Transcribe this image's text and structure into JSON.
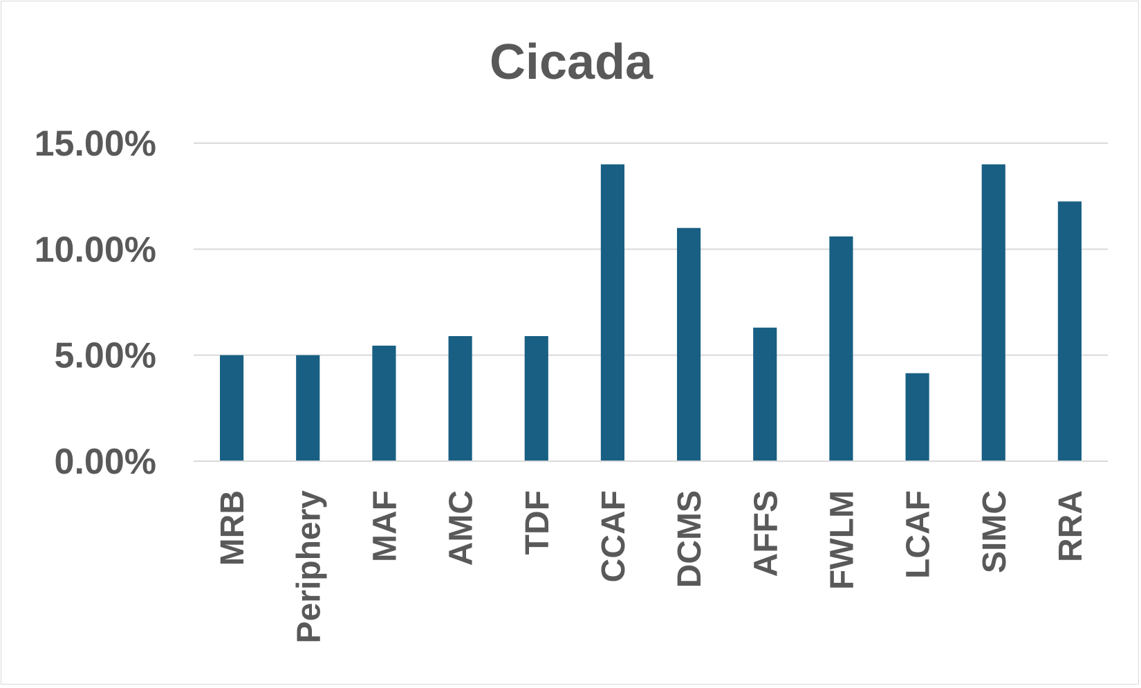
{
  "chart_data": {
    "type": "bar",
    "title": "Cicada",
    "xlabel": "",
    "ylabel": "",
    "categories": [
      "MRB",
      "Periphery",
      "MAF",
      "AMC",
      "TDF",
      "CCAF",
      "DCMS",
      "AFFS",
      "FWLM",
      "LCAF",
      "SIMC",
      "RRA"
    ],
    "values": [
      5.0,
      5.0,
      5.45,
      5.9,
      5.9,
      14.0,
      11.0,
      6.3,
      10.6,
      4.15,
      14.0,
      12.25
    ],
    "ylim": [
      0,
      15
    ],
    "yticks": [
      0,
      5,
      10,
      15
    ],
    "ytick_labels": [
      "0.00%",
      "5.00%",
      "10.00%",
      "15.00%"
    ],
    "grid": true,
    "legend": "none",
    "bar_color": "#185f83",
    "grid_color": "#d9d9d9",
    "text_color": "#595959"
  }
}
